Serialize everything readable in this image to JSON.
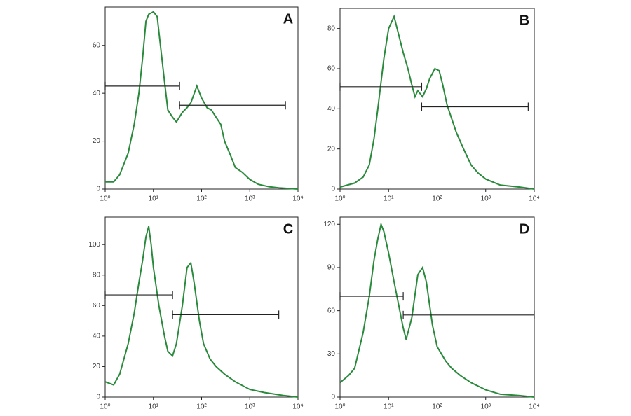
{
  "chart_data": [
    {
      "type": "line",
      "title": "A",
      "xscale": "log",
      "color": "#2a8a3c",
      "x": [
        1,
        1.5,
        2,
        3,
        4,
        5,
        6,
        7,
        8,
        10,
        12,
        14,
        17,
        20,
        25,
        30,
        40,
        50,
        60,
        80,
        100,
        130,
        160,
        200,
        250,
        300,
        400,
        500,
        700,
        1000,
        1500,
        2500,
        4000,
        10000
      ],
      "values": [
        3,
        3,
        6,
        15,
        27,
        40,
        55,
        70,
        73,
        74,
        72,
        60,
        45,
        33,
        30,
        28,
        32,
        34,
        36,
        43,
        38,
        34,
        33,
        30,
        27,
        20,
        14,
        9,
        7,
        4,
        2,
        1,
        0.5,
        0
      ],
      "gates": [
        {
          "x": [
            1,
            35
          ],
          "y": 43
        },
        {
          "x": [
            35,
            5500
          ],
          "y": 35
        }
      ],
      "xlim": [
        1,
        10000
      ],
      "ylim": [
        0,
        76
      ],
      "xticks": [
        {
          "value": 1,
          "label": "10⁰"
        },
        {
          "value": 10,
          "label": "10¹"
        },
        {
          "value": 100,
          "label": "10²"
        },
        {
          "value": 1000,
          "label": "10³"
        },
        {
          "value": 10000,
          "label": "10⁴"
        }
      ],
      "yticks": [
        0,
        20,
        40,
        60
      ]
    },
    {
      "type": "line",
      "title": "B",
      "xscale": "log",
      "color": "#2a8a3c",
      "x": [
        1,
        2,
        3,
        4,
        5,
        6,
        8,
        10,
        13,
        15,
        20,
        25,
        30,
        35,
        40,
        50,
        60,
        70,
        90,
        110,
        130,
        160,
        200,
        250,
        350,
        500,
        700,
        1000,
        2000,
        5000,
        10000
      ],
      "values": [
        1,
        3,
        6,
        12,
        25,
        40,
        65,
        80,
        86,
        80,
        68,
        60,
        52,
        46,
        49,
        46,
        50,
        55,
        60,
        59,
        52,
        42,
        35,
        28,
        20,
        12,
        8,
        5,
        2,
        1,
        0
      ],
      "gates": [
        {
          "x": [
            1,
            48
          ],
          "y": 51
        },
        {
          "x": [
            48,
            7500
          ],
          "y": 41
        }
      ],
      "xlim": [
        1,
        10000
      ],
      "ylim": [
        0,
        90
      ],
      "xticks": [
        {
          "value": 1,
          "label": "10⁰"
        },
        {
          "value": 10,
          "label": "10¹"
        },
        {
          "value": 100,
          "label": "10²"
        },
        {
          "value": 1000,
          "label": "10³"
        },
        {
          "value": 10000,
          "label": "10⁴"
        }
      ],
      "yticks": [
        0,
        20,
        40,
        60,
        80
      ]
    },
    {
      "type": "line",
      "title": "C",
      "xscale": "log",
      "color": "#2a8a3c",
      "x": [
        1,
        1.5,
        2,
        3,
        4,
        5,
        6,
        7,
        8,
        9,
        10,
        13,
        17,
        20,
        25,
        30,
        40,
        50,
        60,
        70,
        90,
        110,
        150,
        200,
        300,
        500,
        1000,
        2000,
        5000,
        10000
      ],
      "values": [
        10,
        8,
        15,
        35,
        55,
        75,
        90,
        105,
        112,
        100,
        85,
        60,
        40,
        30,
        27,
        35,
        60,
        85,
        88,
        75,
        50,
        35,
        25,
        20,
        15,
        10,
        5,
        3,
        1,
        0
      ],
      "gates": [
        {
          "x": [
            1,
            25
          ],
          "y": 67
        },
        {
          "x": [
            25,
            4000
          ],
          "y": 54
        }
      ],
      "xlim": [
        1,
        10000
      ],
      "ylim": [
        0,
        118
      ],
      "xticks": [
        {
          "value": 1,
          "label": "10⁰"
        },
        {
          "value": 10,
          "label": "10¹"
        },
        {
          "value": 100,
          "label": "10²"
        },
        {
          "value": 1000,
          "label": "10³"
        },
        {
          "value": 10000,
          "label": "10⁴"
        }
      ],
      "yticks": [
        0,
        20,
        40,
        60,
        80,
        100
      ]
    },
    {
      "type": "line",
      "title": "D",
      "xscale": "log",
      "color": "#2a8a3c",
      "x": [
        1,
        1.5,
        2,
        3,
        4,
        5,
        6,
        7,
        8,
        10,
        13,
        17,
        20,
        23,
        30,
        40,
        50,
        60,
        80,
        100,
        150,
        200,
        300,
        500,
        1000,
        2000,
        5000,
        10000
      ],
      "values": [
        10,
        15,
        20,
        45,
        70,
        95,
        110,
        120,
        115,
        100,
        80,
        60,
        48,
        40,
        55,
        85,
        90,
        80,
        50,
        35,
        25,
        20,
        15,
        10,
        5,
        2,
        1,
        0
      ],
      "gates": [
        {
          "x": [
            1,
            20
          ],
          "y": 70
        },
        {
          "x": [
            20,
            10000
          ],
          "y": 57
        }
      ],
      "xlim": [
        1,
        10000
      ],
      "ylim": [
        0,
        125
      ],
      "xticks": [
        {
          "value": 1,
          "label": "10⁰"
        },
        {
          "value": 10,
          "label": "10¹"
        },
        {
          "value": 100,
          "label": "10²"
        },
        {
          "value": 1000,
          "label": "10³"
        },
        {
          "value": 10000,
          "label": "10⁴"
        }
      ],
      "yticks": [
        0,
        30,
        60,
        90,
        120
      ]
    }
  ]
}
